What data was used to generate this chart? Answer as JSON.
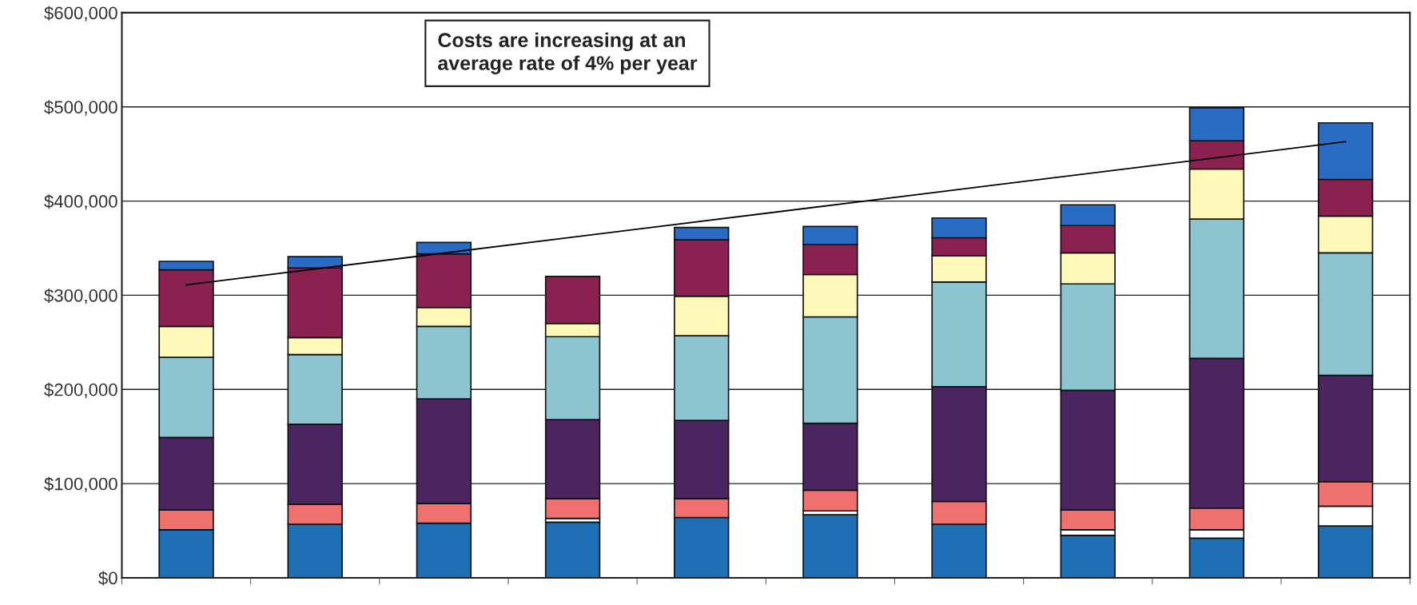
{
  "chart_data": {
    "type": "bar",
    "stacked": true,
    "categories": [
      null,
      null,
      null,
      null,
      null,
      null,
      null,
      null,
      null,
      null
    ],
    "series": [
      {
        "color": "#1f6fb4",
        "values": [
          51000,
          57000,
          58000,
          59000,
          64000,
          67000,
          57000,
          45000,
          42000,
          55000
        ]
      },
      {
        "color": "#ffffff",
        "values": [
          0,
          0,
          0,
          4000,
          0,
          4000,
          0,
          6000,
          9000,
          21000
        ]
      },
      {
        "color": "#f07070",
        "values": [
          21000,
          21000,
          21000,
          21000,
          20000,
          22000,
          24000,
          21000,
          23000,
          26000
        ]
      },
      {
        "color": "#4b2560",
        "values": [
          77000,
          85000,
          111000,
          84000,
          83000,
          71000,
          122000,
          127000,
          159000,
          113000
        ]
      },
      {
        "color": "#8cc4d0",
        "values": [
          85000,
          74000,
          77000,
          88000,
          90000,
          113000,
          111000,
          113000,
          148000,
          130000
        ]
      },
      {
        "color": "#fff8b8",
        "values": [
          33000,
          18000,
          20000,
          14000,
          42000,
          45000,
          28000,
          33000,
          53000,
          39000
        ]
      },
      {
        "color": "#8b2150",
        "values": [
          60000,
          74000,
          57000,
          50000,
          60000,
          32000,
          19000,
          29000,
          30000,
          39000
        ]
      },
      {
        "color": "#2a6cc4",
        "values": [
          9000,
          12000,
          12000,
          0,
          13000,
          19000,
          21000,
          22000,
          35000,
          60000
        ]
      },
      {
        "type": "line",
        "color": "#000000",
        "values": [
          311000,
          null,
          null,
          null,
          null,
          null,
          null,
          null,
          null,
          463000
        ]
      }
    ],
    "ylim": [
      0,
      600000
    ],
    "yticks": [
      {
        "value": 0,
        "label": "$0"
      },
      {
        "value": 100000,
        "label": "$100,000"
      },
      {
        "value": 200000,
        "label": "$200,000"
      },
      {
        "value": 300000,
        "label": "$300,000"
      },
      {
        "value": 400000,
        "label": "$400,000"
      },
      {
        "value": 500000,
        "label": "$500,000"
      },
      {
        "value": 600000,
        "label": "$600,000"
      }
    ],
    "grid": "y",
    "annotations": [
      "Costs are increasing at an\naverage rate of 4% per year"
    ]
  }
}
